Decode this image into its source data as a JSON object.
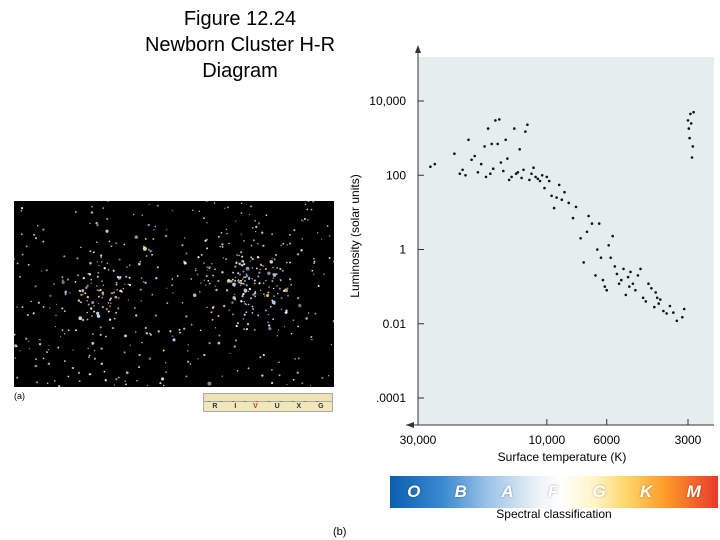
{
  "figure_title": "Figure 12.24\nNewborn Cluster H-R\nDiagram",
  "panel_a_label": "(a)",
  "panel_b_label": "(b)",
  "filter_bands": [
    "R",
    "I",
    "V",
    "U",
    "X",
    "G"
  ],
  "filter_highlight": "V",
  "spectral_classes": [
    "O",
    "B",
    "A",
    "F",
    "G",
    "K",
    "M"
  ],
  "spectral_label": "Spectral classification",
  "colors": {
    "plot_bg": "#e4eeec",
    "dot": "#111111",
    "highlight": "#c0392b"
  },
  "chart_data": {
    "type": "scatter",
    "xlabel": "Surface temperature (K)",
    "ylabel": "Luminosity (solar units)",
    "x_scale": "log-reversed",
    "y_scale": "log",
    "x_ticks": [
      {
        "value": 30000,
        "label": "30,000"
      },
      {
        "value": 10000,
        "label": "10,000"
      },
      {
        "value": 6000,
        "label": "6000"
      },
      {
        "value": 3000,
        "label": "3000"
      }
    ],
    "y_ticks": [
      {
        "value": 10000,
        "label": "10,000"
      },
      {
        "value": 100,
        "label": "100"
      },
      {
        "value": 1,
        "label": "1"
      },
      {
        "value": 0.01,
        "label": "0.01"
      },
      {
        "value": 0.0001,
        "label": ".0001"
      }
    ],
    "points": [
      [
        27000,
        170
      ],
      [
        26000,
        200
      ],
      [
        22000,
        380
      ],
      [
        21000,
        110
      ],
      [
        20500,
        140
      ],
      [
        20000,
        100
      ],
      [
        19500,
        900
      ],
      [
        19000,
        260
      ],
      [
        18500,
        330
      ],
      [
        18000,
        120
      ],
      [
        17500,
        200
      ],
      [
        17000,
        600
      ],
      [
        16800,
        90
      ],
      [
        16500,
        1800
      ],
      [
        16200,
        110
      ],
      [
        16000,
        700
      ],
      [
        15800,
        150
      ],
      [
        15500,
        3000
      ],
      [
        15200,
        700
      ],
      [
        15000,
        3200
      ],
      [
        14800,
        220
      ],
      [
        14500,
        130
      ],
      [
        14200,
        900
      ],
      [
        14000,
        280
      ],
      [
        13800,
        75
      ],
      [
        13500,
        90
      ],
      [
        13200,
        1800
      ],
      [
        13000,
        110
      ],
      [
        12800,
        120
      ],
      [
        12600,
        500
      ],
      [
        12400,
        85
      ],
      [
        12200,
        140
      ],
      [
        12000,
        1500
      ],
      [
        11800,
        2300
      ],
      [
        11600,
        75
      ],
      [
        11400,
        110
      ],
      [
        11200,
        160
      ],
      [
        11000,
        90
      ],
      [
        10800,
        80
      ],
      [
        10600,
        70
      ],
      [
        10400,
        100
      ],
      [
        10200,
        45
      ],
      [
        10000,
        90
      ],
      [
        9800,
        70
      ],
      [
        9600,
        28
      ],
      [
        9400,
        13
      ],
      [
        9200,
        25
      ],
      [
        9000,
        55
      ],
      [
        8800,
        22
      ],
      [
        8600,
        35
      ],
      [
        8300,
        18
      ],
      [
        8000,
        7
      ],
      [
        7800,
        14
      ],
      [
        7500,
        2
      ],
      [
        7300,
        0.45
      ],
      [
        7100,
        3
      ],
      [
        7000,
        8
      ],
      [
        6800,
        5
      ],
      [
        6600,
        0.2
      ],
      [
        6500,
        1
      ],
      [
        6400,
        5
      ],
      [
        6300,
        0.6
      ],
      [
        6200,
        0.15
      ],
      [
        6100,
        0.1
      ],
      [
        6000,
        0.08
      ],
      [
        5900,
        1.3
      ],
      [
        5800,
        0.6
      ],
      [
        5700,
        2.3
      ],
      [
        5600,
        0.35
      ],
      [
        5500,
        0.22
      ],
      [
        5400,
        0.12
      ],
      [
        5300,
        0.15
      ],
      [
        5200,
        0.3
      ],
      [
        5100,
        0.06
      ],
      [
        5000,
        0.18
      ],
      [
        4950,
        0.1
      ],
      [
        4900,
        0.25
      ],
      [
        4800,
        0.12
      ],
      [
        4700,
        0.08
      ],
      [
        4600,
        0.2
      ],
      [
        4500,
        0.3
      ],
      [
        4400,
        0.05
      ],
      [
        4300,
        0.04
      ],
      [
        4200,
        0.12
      ],
      [
        4100,
        0.09
      ],
      [
        4000,
        0.028
      ],
      [
        3950,
        0.07
      ],
      [
        3900,
        0.05
      ],
      [
        3850,
        0.035
      ],
      [
        3800,
        0.045
      ],
      [
        3700,
        0.022
      ],
      [
        3600,
        0.019
      ],
      [
        3500,
        0.03
      ],
      [
        3400,
        0.02
      ],
      [
        3300,
        0.012
      ],
      [
        3150,
        0.015
      ],
      [
        3100,
        0.025
      ],
      [
        3000,
        3000
      ],
      [
        2980,
        1800
      ],
      [
        2960,
        1000
      ],
      [
        2940,
        4500
      ],
      [
        2920,
        2500
      ],
      [
        2900,
        300
      ],
      [
        2880,
        600
      ],
      [
        2860,
        5000
      ]
    ]
  }
}
